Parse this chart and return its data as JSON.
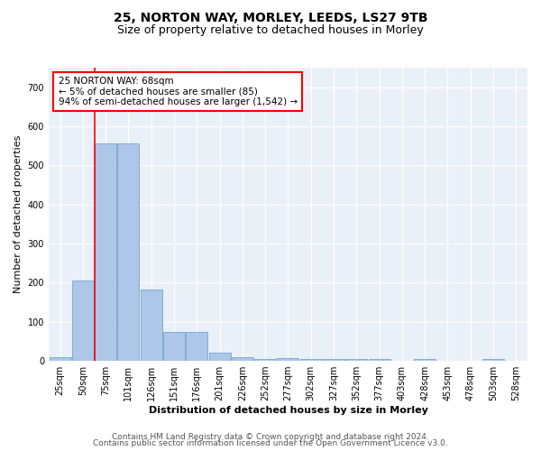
{
  "title1": "25, NORTON WAY, MORLEY, LEEDS, LS27 9TB",
  "title2": "Size of property relative to detached houses in Morley",
  "xlabel": "Distribution of detached houses by size in Morley",
  "ylabel": "Number of detached properties",
  "bar_color": "#aec6e8",
  "bar_edge_color": "#5b9bd5",
  "categories": [
    "25sqm",
    "50sqm",
    "75sqm",
    "101sqm",
    "126sqm",
    "151sqm",
    "176sqm",
    "201sqm",
    "226sqm",
    "252sqm",
    "277sqm",
    "302sqm",
    "327sqm",
    "352sqm",
    "377sqm",
    "403sqm",
    "428sqm",
    "453sqm",
    "478sqm",
    "503sqm",
    "528sqm"
  ],
  "values": [
    10,
    205,
    557,
    557,
    182,
    75,
    75,
    20,
    10,
    5,
    8,
    5,
    5,
    5,
    5,
    0,
    5,
    0,
    0,
    5,
    0
  ],
  "ylim": [
    0,
    750
  ],
  "yticks": [
    0,
    100,
    200,
    300,
    400,
    500,
    600,
    700
  ],
  "annotation_text": "25 NORTON WAY: 68sqm\n← 5% of detached houses are smaller (85)\n94% of semi-detached houses are larger (1,542) →",
  "annotation_box_color": "white",
  "annotation_box_edge": "red",
  "footer1": "Contains HM Land Registry data © Crown copyright and database right 2024.",
  "footer2": "Contains public sector information licensed under the Open Government Licence v3.0.",
  "background_color": "#eaf0f8",
  "grid_color": "white",
  "title1_fontsize": 10,
  "title2_fontsize": 9,
  "axis_label_fontsize": 8,
  "tick_fontsize": 7,
  "annotation_fontsize": 7.5,
  "footer_fontsize": 6.5
}
